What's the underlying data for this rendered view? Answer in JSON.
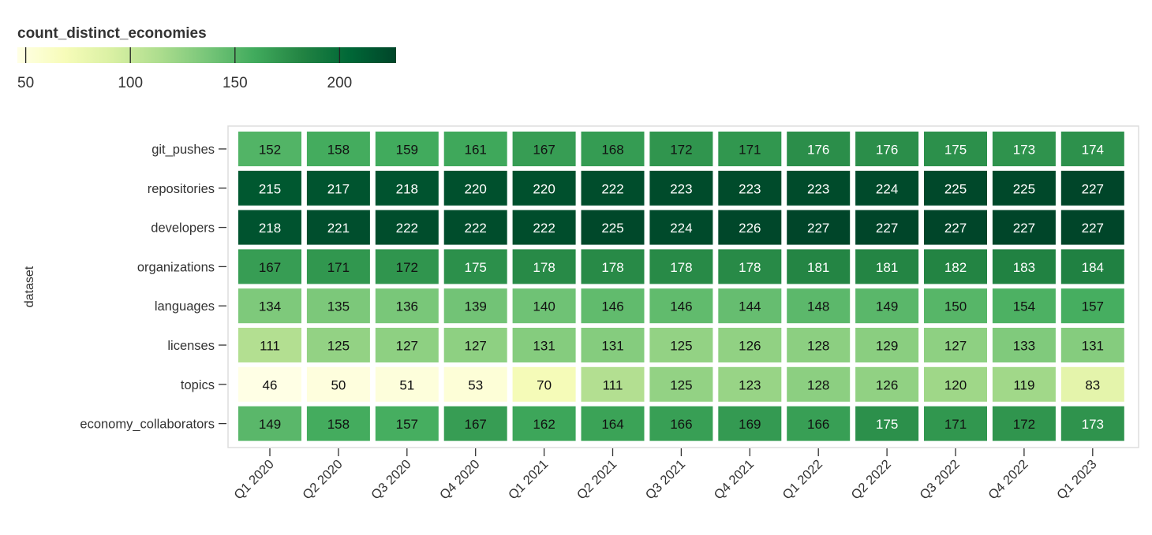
{
  "chart_data": {
    "type": "heatmap",
    "legend": {
      "title": "count_distinct_economies",
      "ticks": [
        50,
        100,
        150,
        200
      ],
      "range": [
        46,
        227
      ],
      "placement": "top-left"
    },
    "ylabel": "dataset",
    "xlabel": "",
    "x": [
      "Q1 2020",
      "Q2 2020",
      "Q3 2020",
      "Q4 2020",
      "Q1 2021",
      "Q2 2021",
      "Q3 2021",
      "Q4 2021",
      "Q1 2022",
      "Q2 2022",
      "Q3 2022",
      "Q4 2022",
      "Q1 2023"
    ],
    "y": [
      "git_pushes",
      "repositories",
      "developers",
      "organizations",
      "languages",
      "licenses",
      "topics",
      "economy_collaborators"
    ],
    "values": [
      [
        152,
        158,
        159,
        161,
        167,
        168,
        172,
        171,
        176,
        176,
        175,
        173,
        174
      ],
      [
        215,
        217,
        218,
        220,
        220,
        222,
        223,
        223,
        223,
        224,
        225,
        225,
        227
      ],
      [
        218,
        221,
        222,
        222,
        222,
        225,
        224,
        226,
        227,
        227,
        227,
        227,
        227
      ],
      [
        167,
        171,
        172,
        175,
        178,
        178,
        178,
        178,
        181,
        181,
        182,
        183,
        184
      ],
      [
        134,
        135,
        136,
        139,
        140,
        146,
        146,
        144,
        148,
        149,
        150,
        154,
        157
      ],
      [
        111,
        125,
        127,
        127,
        131,
        131,
        125,
        126,
        128,
        129,
        127,
        133,
        131
      ],
      [
        46,
        50,
        51,
        53,
        70,
        111,
        125,
        123,
        128,
        126,
        120,
        119,
        83
      ],
      [
        149,
        158,
        157,
        167,
        162,
        164,
        166,
        169,
        166,
        175,
        171,
        172,
        173
      ]
    ],
    "colors": {
      "scale": [
        "#ffffe5",
        "#f7fcb9",
        "#d9f0a3",
        "#addd8e",
        "#78c679",
        "#41ab5d",
        "#238443",
        "#006837",
        "#004529"
      ]
    }
  }
}
